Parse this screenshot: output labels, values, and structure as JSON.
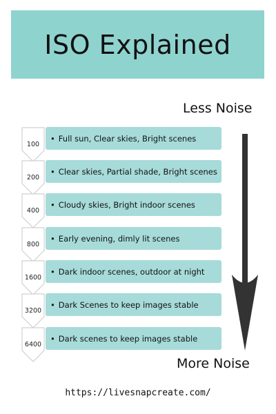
{
  "title": "ISO Explained",
  "less_noise": "Less Noise",
  "more_noise": "More Noise",
  "footer_url": "https://livesnapcreate.com/",
  "colors": {
    "title_bg": "#8fd3cf",
    "bar_bg": "#a6dbd9",
    "arrow": "#333333"
  },
  "rows": [
    {
      "iso": "100",
      "text": "Full sun, Clear skies, Bright scenes"
    },
    {
      "iso": "200",
      "text": "Clear skies, Partial shade, Bright scenes"
    },
    {
      "iso": "400",
      "text": "Cloudy skies, Bright indoor scenes"
    },
    {
      "iso": "800",
      "text": "Early evening, dimly lit scenes"
    },
    {
      "iso": "1600",
      "text": "Dark indoor scenes, outdoor at night"
    },
    {
      "iso": "3200",
      "text": "Dark Scenes to keep images stable"
    },
    {
      "iso": "6400",
      "text": "Dark scenes to keep images stable"
    }
  ]
}
